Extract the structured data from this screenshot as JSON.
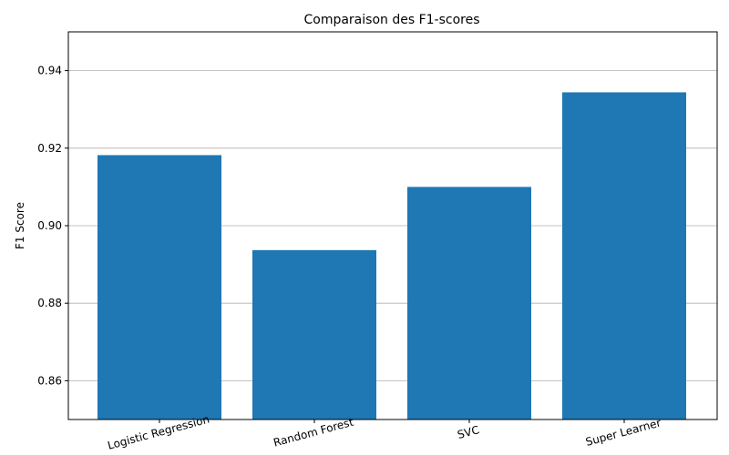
{
  "chart_data": {
    "type": "bar",
    "title": "Comparaison des F1-scores",
    "xlabel": "",
    "ylabel": "F1 Score",
    "categories": [
      "Logistic Regression",
      "Random Forest",
      "SVC",
      "Super Learner"
    ],
    "values": [
      0.9182,
      0.8937,
      0.91,
      0.9344
    ],
    "ylim": [
      0.85,
      0.95
    ],
    "yticks": [
      0.86,
      0.88,
      0.9,
      0.92,
      0.94
    ],
    "ytick_labels": [
      "0.86",
      "0.88",
      "0.90",
      "0.92",
      "0.94"
    ],
    "grid": "y-axis",
    "x_label_rotation_deg": 15,
    "bar_color": "#1f77b4"
  }
}
